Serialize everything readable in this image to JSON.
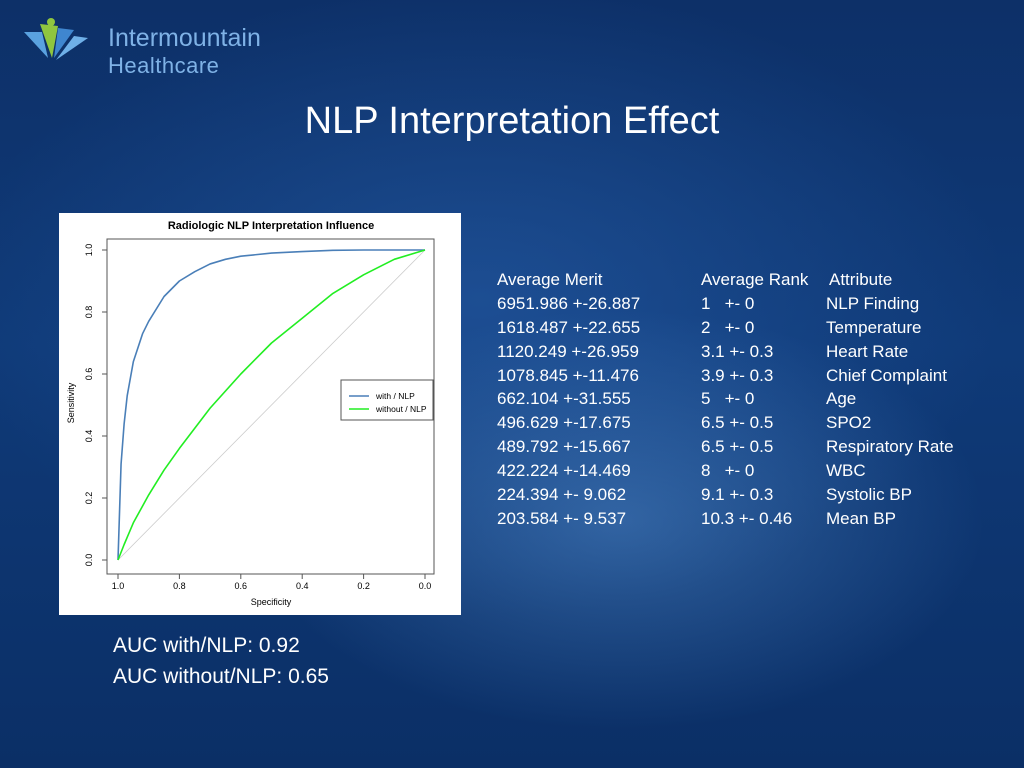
{
  "logo": {
    "line1": "Intermountain",
    "line2": "Healthcare"
  },
  "slide_title": "NLP Interpretation Effect",
  "chart_data": {
    "type": "line",
    "title": "Radiologic NLP Interpretation Influence",
    "xlabel": "Specificity",
    "ylabel": "Sensitivity",
    "xlim": [
      1.0,
      0.0
    ],
    "ylim": [
      0.0,
      1.0
    ],
    "x_ticks": [
      "1.0",
      "0.8",
      "0.6",
      "0.4",
      "0.2",
      "0.0"
    ],
    "y_ticks": [
      "0.0",
      "0.2",
      "0.4",
      "0.6",
      "0.8",
      "1.0"
    ],
    "legend_position": "right",
    "series": [
      {
        "name": "with / NLP",
        "color": "#4a7fb8",
        "x": [
          1.0,
          0.99,
          0.98,
          0.97,
          0.95,
          0.92,
          0.9,
          0.85,
          0.8,
          0.75,
          0.7,
          0.65,
          0.6,
          0.5,
          0.4,
          0.3,
          0.2,
          0.1,
          0.0
        ],
        "y": [
          0.0,
          0.31,
          0.44,
          0.53,
          0.64,
          0.73,
          0.77,
          0.85,
          0.9,
          0.93,
          0.955,
          0.97,
          0.98,
          0.99,
          0.995,
          0.999,
          1.0,
          1.0,
          1.0
        ]
      },
      {
        "name": "without / NLP",
        "color": "#22ee22",
        "x": [
          1.0,
          0.98,
          0.95,
          0.9,
          0.85,
          0.8,
          0.7,
          0.6,
          0.5,
          0.4,
          0.3,
          0.2,
          0.1,
          0.0
        ],
        "y": [
          0.0,
          0.05,
          0.12,
          0.21,
          0.29,
          0.36,
          0.49,
          0.6,
          0.7,
          0.78,
          0.86,
          0.92,
          0.97,
          1.0
        ]
      },
      {
        "name": "",
        "color": "#cccccc",
        "x": [
          1.0,
          0.0
        ],
        "y": [
          0.0,
          1.0
        ]
      }
    ]
  },
  "merit_table": {
    "headers": [
      "Average Merit",
      "Average Rank",
      "Attribute"
    ],
    "rows": [
      [
        "6951.986 +-26.887",
        "1   +- 0",
        "NLP Finding"
      ],
      [
        "1618.487 +-22.655",
        "2   +- 0",
        "Temperature"
      ],
      [
        "1120.249 +-26.959",
        "3.1 +- 0.3",
        "Heart Rate"
      ],
      [
        "1078.845 +-11.476",
        "3.9 +- 0.3",
        "Chief Complaint"
      ],
      [
        "662.104 +-31.555",
        "5   +- 0",
        "Age"
      ],
      [
        "496.629 +-17.675",
        "6.5 +- 0.5",
        "SPO2"
      ],
      [
        "489.792 +-15.667",
        "6.5 +- 0.5",
        "Respiratory Rate"
      ],
      [
        "422.224 +-14.469",
        "8   +- 0",
        "WBC"
      ],
      [
        "224.394 +- 9.062",
        "9.1 +- 0.3",
        "Systolic BP"
      ],
      [
        "203.584 +- 9.537",
        "10.3 +- 0.46",
        "Mean BP"
      ]
    ]
  },
  "auc": {
    "with_nlp": "AUC with/NLP: 0.92",
    "without_nlp": "AUC without/NLP: 0.65"
  }
}
